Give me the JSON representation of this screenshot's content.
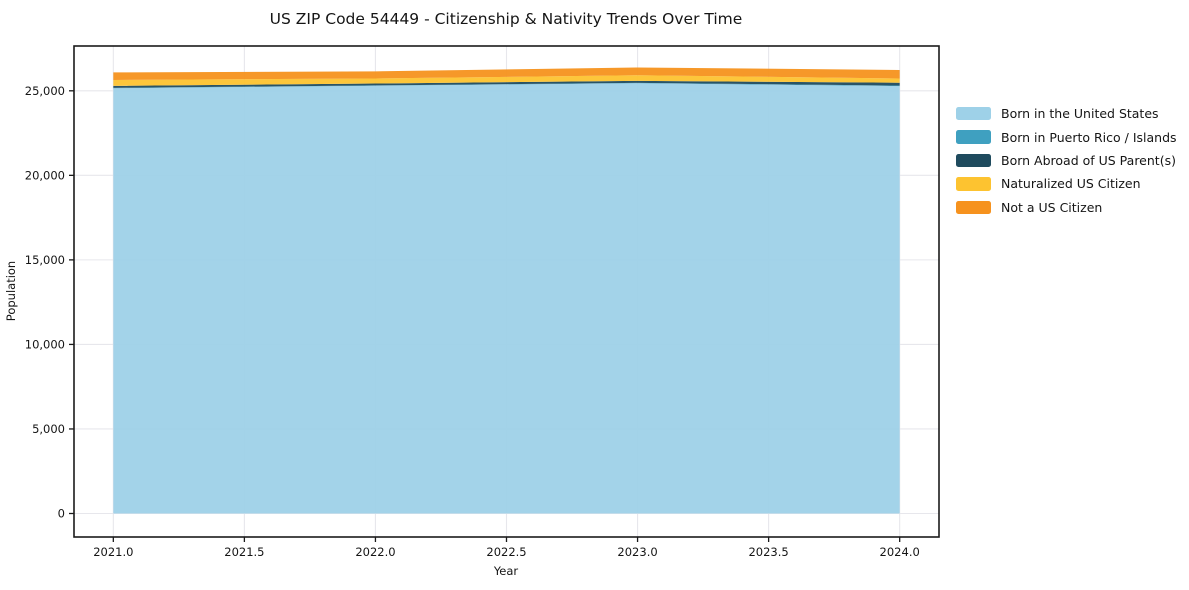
{
  "chart_data": {
    "type": "area",
    "stacked": true,
    "title": "US ZIP Code 54449 - Citizenship & Nativity Trends Over Time",
    "xlabel": "Year",
    "ylabel": "Population",
    "x": [
      2021,
      2022,
      2023,
      2024
    ],
    "series": [
      {
        "name": "Born in the United States",
        "color": "#9ed1e8",
        "values": [
          25150,
          25300,
          25450,
          25280
        ]
      },
      {
        "name": "Born in Puerto Rico / Islands",
        "color": "#3fa0c0",
        "values": [
          20,
          20,
          20,
          30
        ]
      },
      {
        "name": "Born Abroad of US Parent(s)",
        "color": "#1f4b5e",
        "values": [
          120,
          110,
          120,
          170
        ]
      },
      {
        "name": "Naturalized US Citizen",
        "color": "#fdc330",
        "values": [
          350,
          300,
          330,
          250
        ]
      },
      {
        "name": "Not a US Citizen",
        "color": "#f6921e",
        "values": [
          450,
          420,
          460,
          500
        ]
      }
    ],
    "totals": [
      26090,
      26150,
      26380,
      26230
    ],
    "x_ticks": [
      2021.0,
      2021.5,
      2022.0,
      2022.5,
      2023.0,
      2023.5,
      2024.0
    ],
    "x_tick_labels": [
      "2021.0",
      "2021.5",
      "2022.0",
      "2022.5",
      "2023.0",
      "2023.5",
      "2024.0"
    ],
    "y_ticks": [
      0,
      5000,
      10000,
      15000,
      20000,
      25000
    ],
    "y_tick_labels": [
      "0",
      "5,000",
      "10,000",
      "15,000",
      "20,000",
      "25,000"
    ],
    "xlim": [
      2020.85,
      2024.15
    ],
    "ylim": [
      -1390,
      27650
    ],
    "grid": true,
    "legend_position": "right",
    "grid_color": "#e7e7ec",
    "axis_color": "#1a1a1a"
  }
}
